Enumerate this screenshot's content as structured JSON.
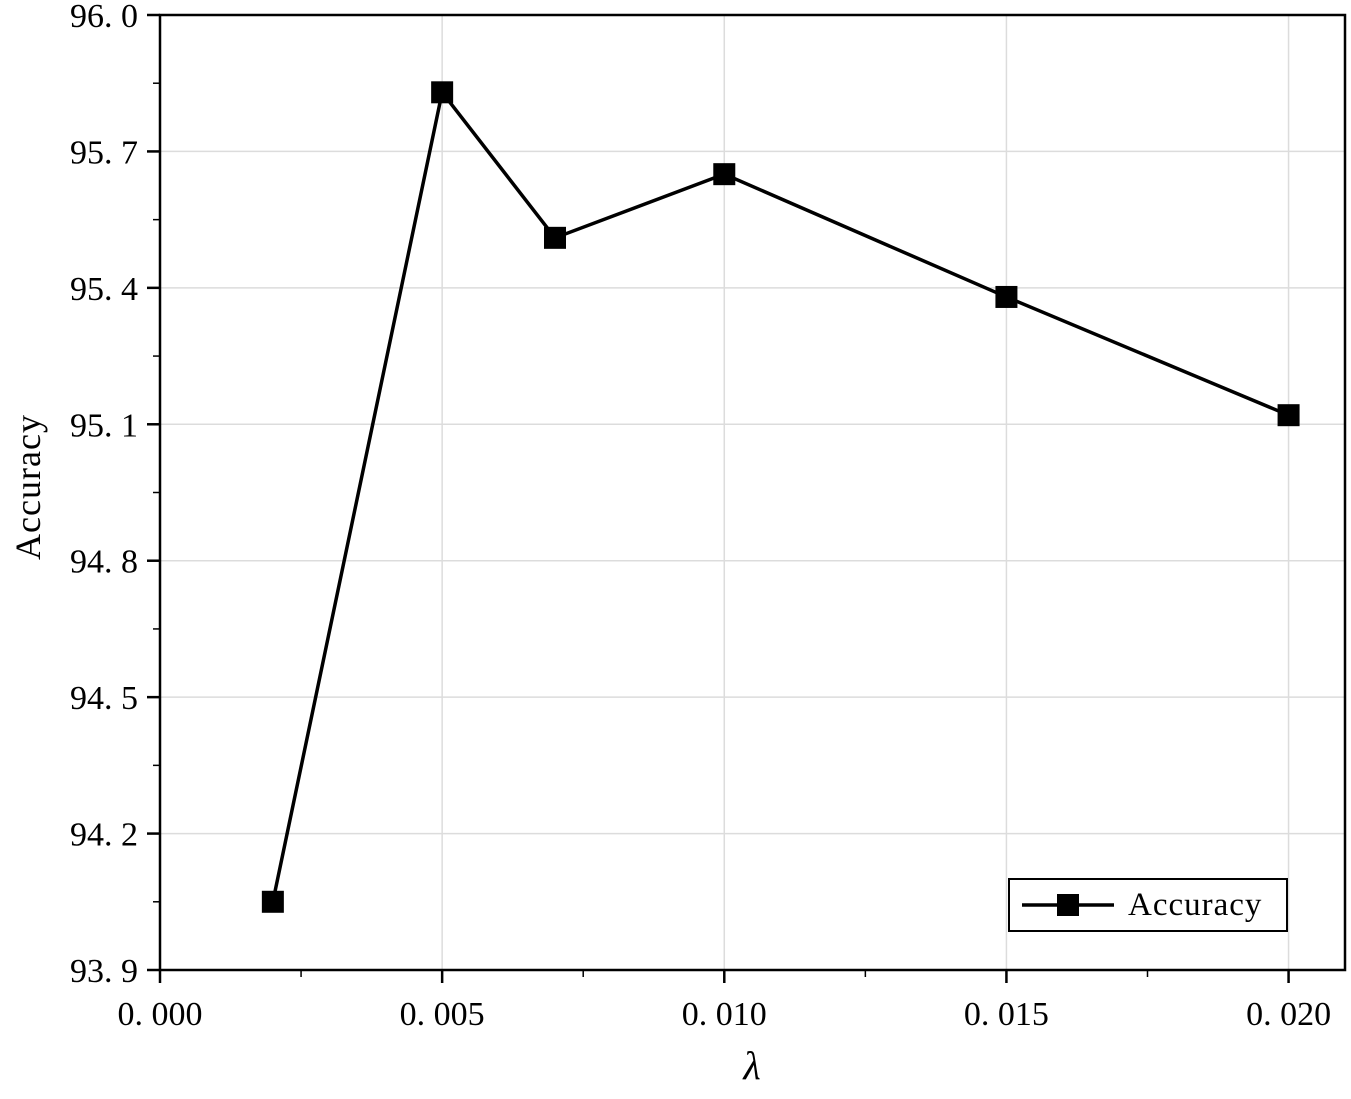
{
  "chart_data": {
    "type": "line",
    "title": "",
    "xlabel": "λ",
    "ylabel": "Accuracy",
    "x": [
      0.002,
      0.005,
      0.007,
      0.01,
      0.015,
      0.02
    ],
    "series": [
      {
        "name": "Accuracy",
        "values": [
          94.05,
          95.83,
          95.51,
          95.65,
          95.38,
          95.12
        ]
      }
    ],
    "xlim": [
      0,
      0.021
    ],
    "ylim": [
      93.9,
      96.0
    ],
    "x_ticks": [
      0,
      0.005,
      0.01,
      0.015,
      0.02
    ],
    "x_tick_labels": [
      "0. 000",
      "0. 005",
      "0. 010",
      "0. 015",
      "0. 020"
    ],
    "y_ticks": [
      93.9,
      94.2,
      94.5,
      94.8,
      95.1,
      95.4,
      95.7,
      96.0
    ],
    "y_tick_labels": [
      "93. 9",
      "94. 2",
      "94. 5",
      "94. 8",
      "95. 1",
      "95. 4",
      "95. 7",
      "96. 0"
    ],
    "x_minor_step": 0.0025,
    "y_minor_step": 0.15,
    "grid": true,
    "legend": {
      "label": "Accuracy",
      "position": "bottom-right"
    },
    "colors": {
      "line": "#000000",
      "marker": "#000000",
      "grid": "#dcdcdc",
      "frame": "#000000",
      "background": "#ffffff"
    }
  }
}
